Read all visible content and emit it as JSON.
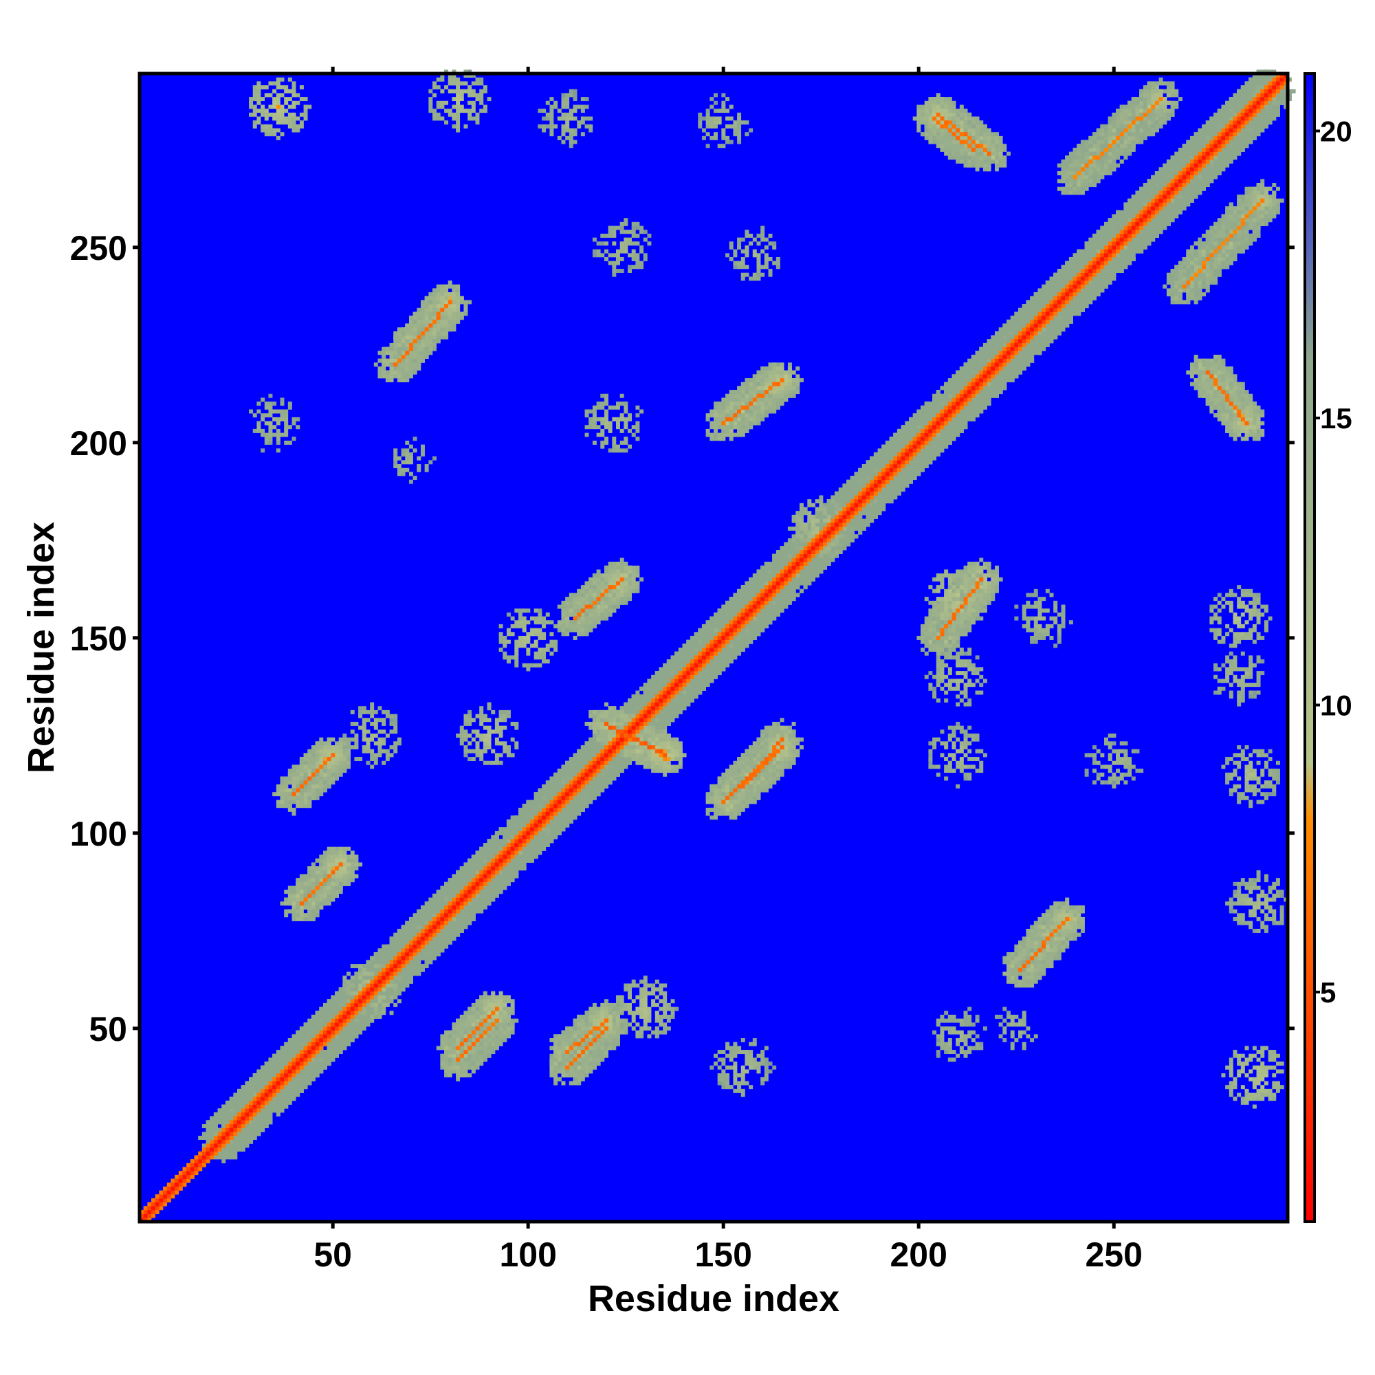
{
  "chart_data": {
    "type": "heatmap",
    "title": "",
    "xlabel": "Residue index",
    "ylabel": "Residue index",
    "x_range": [
      1,
      294
    ],
    "y_range": [
      1,
      294
    ],
    "x_ticks": [
      50,
      100,
      150,
      200,
      250
    ],
    "y_ticks": [
      50,
      100,
      150,
      200,
      250
    ],
    "colorbar": {
      "range": [
        1,
        21
      ],
      "ticks": [
        5,
        10,
        15,
        20
      ],
      "colors": [
        "#ff0000",
        "#ff8c00",
        "#b7c48a",
        "#8fa88c",
        "#0000ff"
      ],
      "stops": [
        1,
        8,
        9,
        16,
        21
      ]
    },
    "background_value": 21,
    "background_color": "#0000ff",
    "diagonal_value": 2,
    "contact_features": [
      {
        "kind": "segment",
        "from": [
          22,
          22
        ],
        "to": [
          290,
          290
        ],
        "value": 10
      },
      {
        "kind": "segment",
        "from": [
          42,
          82
        ],
        "to": [
          52,
          92
        ],
        "value": 7
      },
      {
        "kind": "segment",
        "from": [
          82,
          42
        ],
        "to": [
          92,
          52
        ],
        "value": 7
      },
      {
        "kind": "segment",
        "from": [
          40,
          110
        ],
        "to": [
          50,
          120
        ],
        "value": 7
      },
      {
        "kind": "segment",
        "from": [
          110,
          40
        ],
        "to": [
          120,
          50
        ],
        "value": 7
      },
      {
        "kind": "segment",
        "from": [
          112,
          155
        ],
        "to": [
          124,
          165
        ],
        "value": 7
      },
      {
        "kind": "segment",
        "from": [
          155,
          112
        ],
        "to": [
          165,
          124
        ],
        "value": 7
      },
      {
        "kind": "segment",
        "from": [
          82,
          45
        ],
        "to": [
          92,
          55
        ],
        "value": 7
      },
      {
        "kind": "segment",
        "from": [
          110,
          44
        ],
        "to": [
          120,
          52
        ],
        "value": 7
      },
      {
        "kind": "segment",
        "from": [
          150,
          108
        ],
        "to": [
          165,
          122
        ],
        "value": 7
      },
      {
        "kind": "segment",
        "from": [
          120,
          128
        ],
        "to": [
          135,
          120
        ],
        "value": 6
      },
      {
        "kind": "segment",
        "from": [
          66,
          220
        ],
        "to": [
          80,
          236
        ],
        "value": 7
      },
      {
        "kind": "segment",
        "from": [
          150,
          205
        ],
        "to": [
          165,
          216
        ],
        "value": 7
      },
      {
        "kind": "segment",
        "from": [
          205,
          150
        ],
        "to": [
          216,
          165
        ],
        "value": 7
      },
      {
        "kind": "segment",
        "from": [
          204,
          283
        ],
        "to": [
          214,
          275
        ],
        "value": 7
      },
      {
        "kind": "segment",
        "from": [
          240,
          268
        ],
        "to": [
          262,
          288
        ],
        "value": 8
      },
      {
        "kind": "segment",
        "from": [
          268,
          240
        ],
        "to": [
          288,
          262
        ],
        "value": 8
      },
      {
        "kind": "segment",
        "from": [
          226,
          65
        ],
        "to": [
          238,
          78
        ],
        "value": 7
      },
      {
        "kind": "segment",
        "from": [
          274,
          218
        ],
        "to": [
          284,
          205
        ],
        "value": 7
      },
      {
        "kind": "segment",
        "from": [
          218,
          274
        ],
        "to": [
          205,
          284
        ],
        "value": 7
      },
      {
        "kind": "blob",
        "center": [
          36,
          286
        ],
        "value": 8
      },
      {
        "kind": "blob",
        "center": [
          82,
          288
        ],
        "value": 9
      },
      {
        "kind": "blob",
        "center": [
          110,
          283
        ],
        "value": 11
      },
      {
        "kind": "blob",
        "center": [
          150,
          282
        ],
        "value": 11
      },
      {
        "kind": "blob",
        "center": [
          122,
          205
        ],
        "value": 10
      },
      {
        "kind": "blob",
        "center": [
          35,
          205
        ],
        "value": 11
      },
      {
        "kind": "blob",
        "center": [
          124,
          250
        ],
        "value": 11
      },
      {
        "kind": "blob",
        "center": [
          158,
          248
        ],
        "value": 11
      },
      {
        "kind": "blob",
        "center": [
          70,
          195
        ],
        "value": 12
      },
      {
        "kind": "blob",
        "center": [
          210,
          160
        ],
        "value": 8
      },
      {
        "kind": "blob",
        "center": [
          210,
          140
        ],
        "value": 10
      },
      {
        "kind": "blob",
        "center": [
          232,
          155
        ],
        "value": 11
      },
      {
        "kind": "blob",
        "center": [
          282,
          155
        ],
        "value": 9
      },
      {
        "kind": "blob",
        "center": [
          282,
          140
        ],
        "value": 11
      },
      {
        "kind": "blob",
        "center": [
          210,
          120
        ],
        "value": 10
      },
      {
        "kind": "blob",
        "center": [
          250,
          118
        ],
        "value": 11
      },
      {
        "kind": "blob",
        "center": [
          285,
          115
        ],
        "value": 10
      },
      {
        "kind": "blob",
        "center": [
          287,
          82
        ],
        "value": 10
      },
      {
        "kind": "blob",
        "center": [
          286,
          38
        ],
        "value": 8
      },
      {
        "kind": "blob",
        "center": [
          210,
          48
        ],
        "value": 11
      },
      {
        "kind": "blob",
        "center": [
          225,
          50
        ],
        "value": 12
      },
      {
        "kind": "blob",
        "center": [
          60,
          125
        ],
        "value": 10
      },
      {
        "kind": "blob",
        "center": [
          90,
          125
        ],
        "value": 9
      },
      {
        "kind": "blob",
        "center": [
          155,
          40
        ],
        "value": 10
      },
      {
        "kind": "blob",
        "center": [
          130,
          55
        ],
        "value": 9
      },
      {
        "kind": "blob",
        "center": [
          60,
          60
        ],
        "value": 9
      },
      {
        "kind": "blob",
        "center": [
          100,
          150
        ],
        "value": 9
      },
      {
        "kind": "blob",
        "center": [
          175,
          178
        ],
        "value": 9
      }
    ]
  }
}
